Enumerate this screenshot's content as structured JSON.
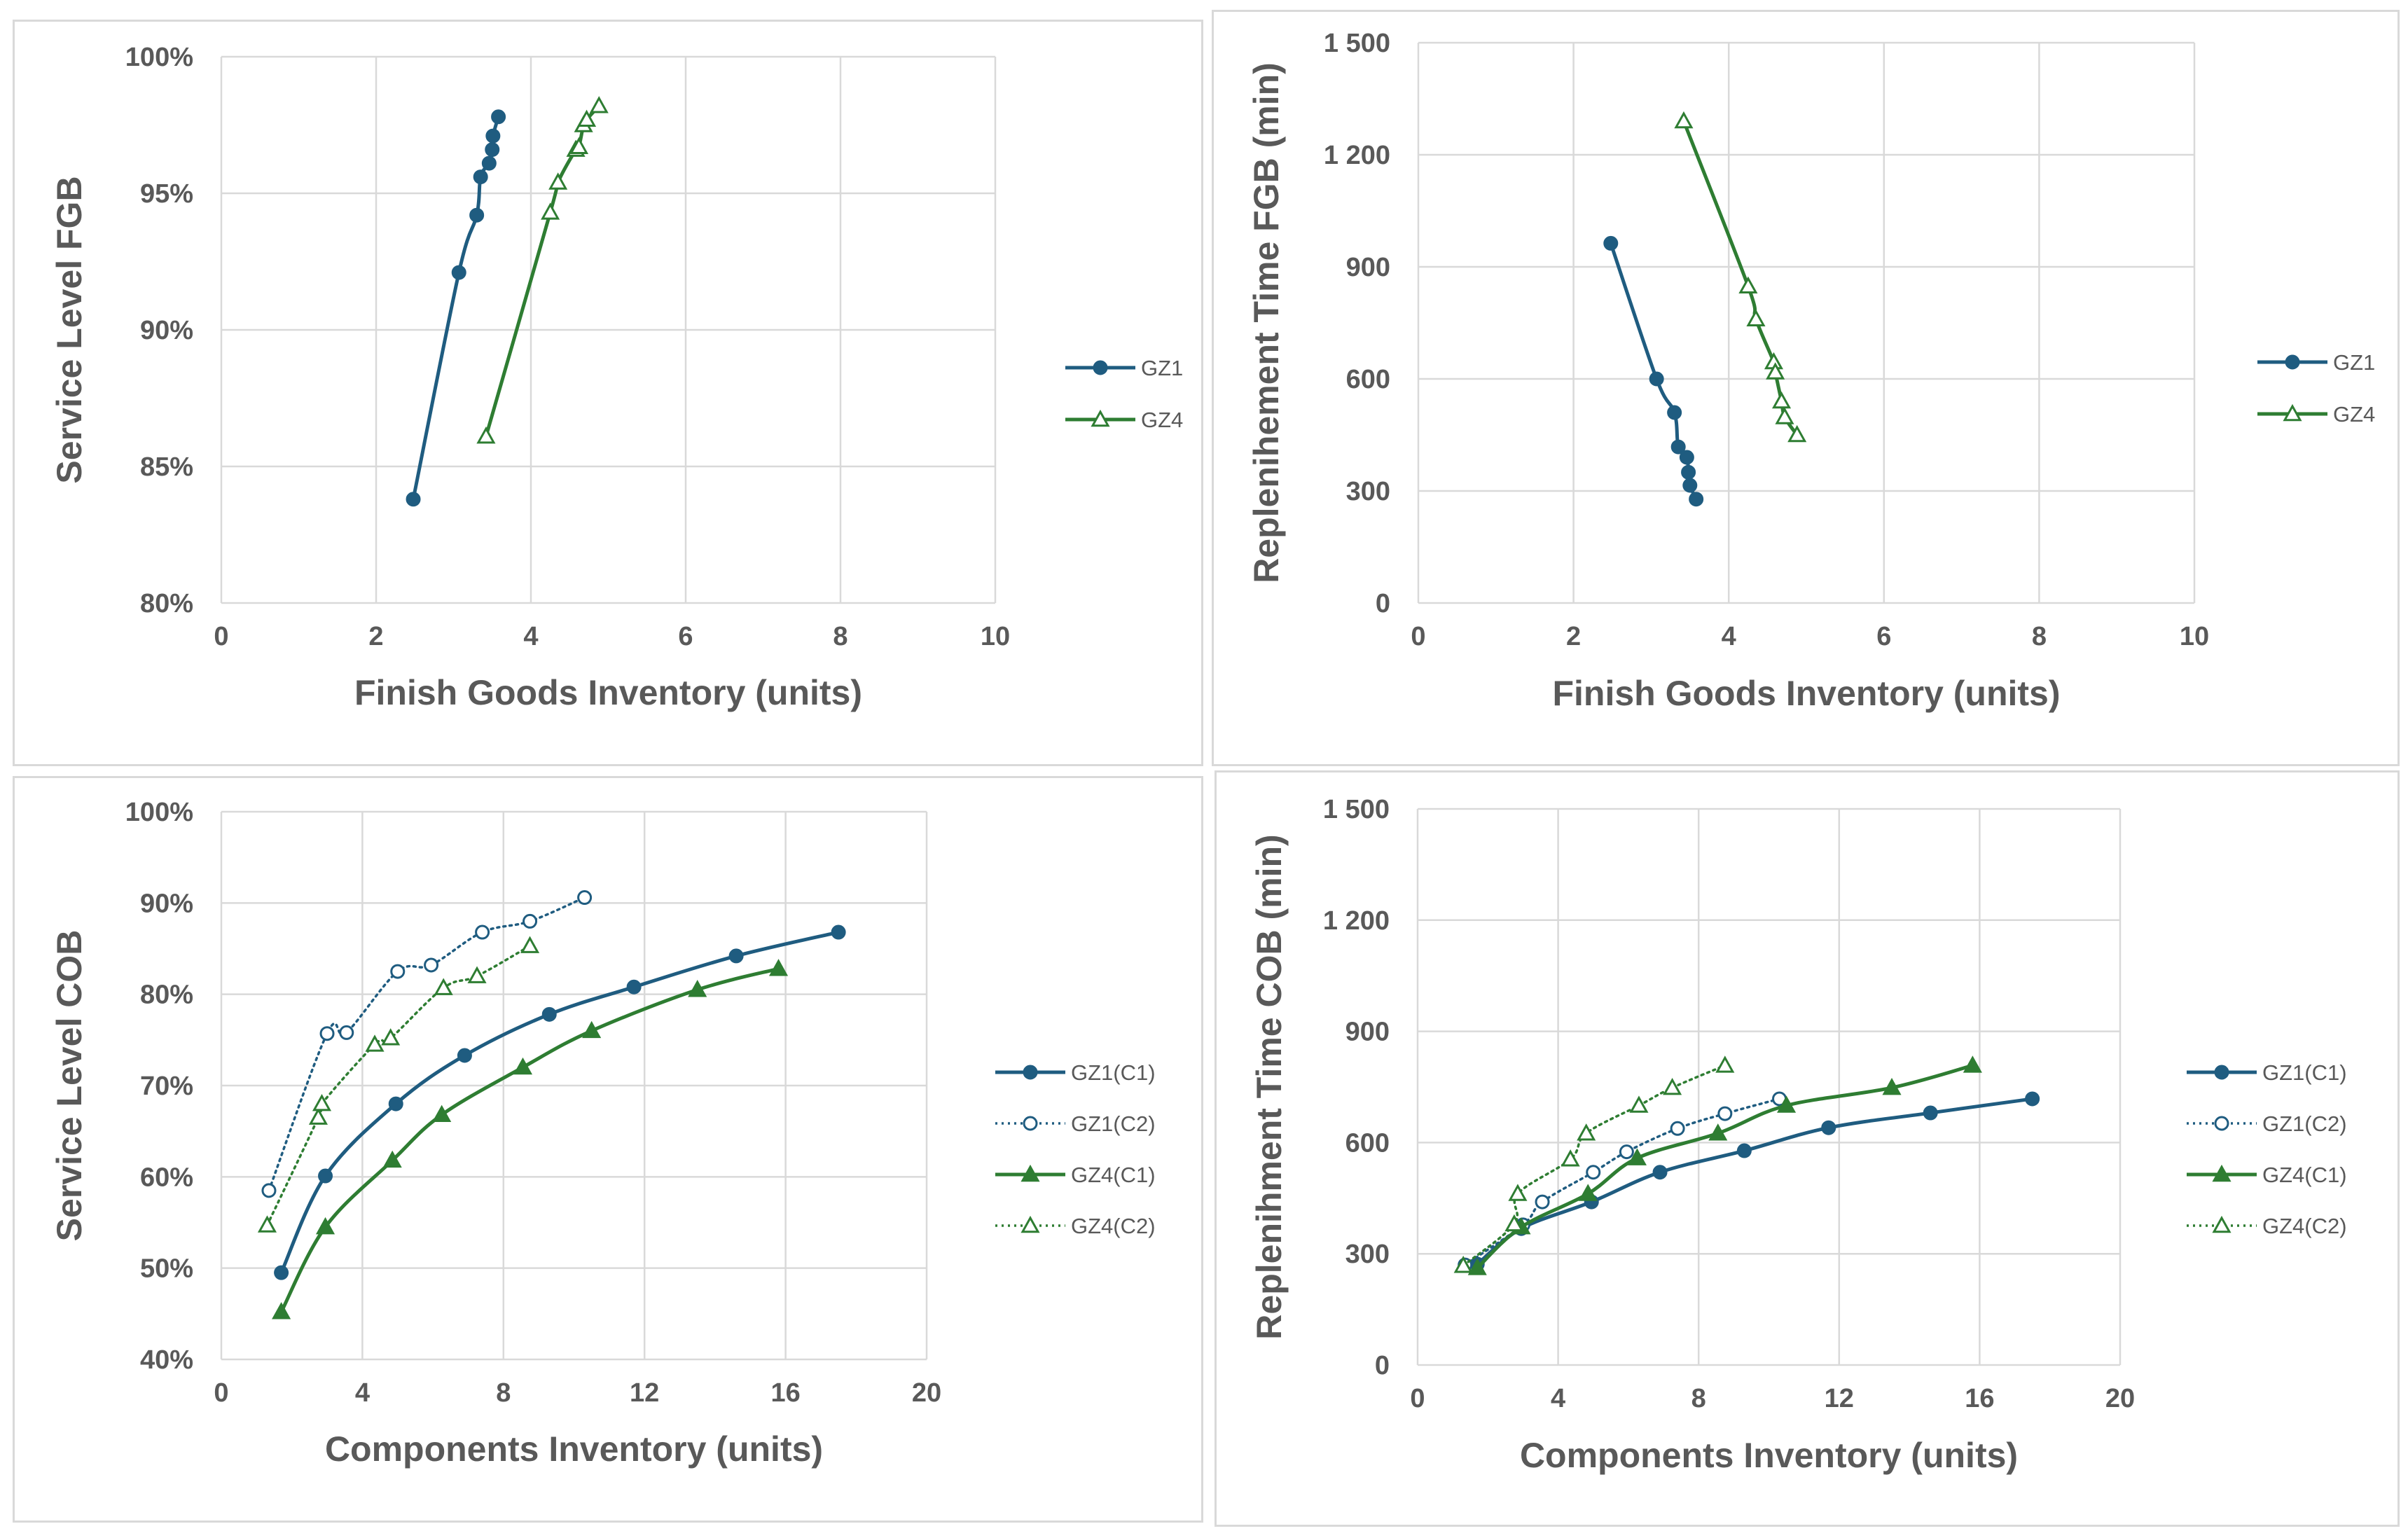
{
  "chart_data": [
    {
      "type": "line",
      "xlabel": "Finish Goods Inventory  (units)",
      "ylabel": "Service Level FGB",
      "xlim": [
        0,
        10
      ],
      "ylim": [
        0.8,
        1.0
      ],
      "xticks": [
        0,
        2,
        4,
        6,
        8,
        10
      ],
      "yticks": [
        0.8,
        0.85,
        0.9,
        0.95,
        1.0
      ],
      "ytick_labels": [
        "80%",
        "85%",
        "90%",
        "95%",
        "100%"
      ],
      "grid": true,
      "legend": "right",
      "series": [
        {
          "name": "GZ1",
          "color": "#1f5c80",
          "marker": "circle",
          "dash": "solid",
          "x": [
            2.48,
            3.07,
            3.3,
            3.35,
            3.46,
            3.5,
            3.51,
            3.58
          ],
          "y": [
            0.838,
            0.921,
            0.942,
            0.956,
            0.961,
            0.966,
            0.971,
            0.978
          ]
        },
        {
          "name": "GZ4",
          "color": "#2e7d32",
          "marker": "triangle-open",
          "dash": "solid",
          "x": [
            3.42,
            4.25,
            4.35,
            4.58,
            4.62,
            4.68,
            4.72,
            4.88
          ],
          "y": [
            0.861,
            0.943,
            0.954,
            0.966,
            0.967,
            0.975,
            0.977,
            0.982
          ]
        }
      ]
    },
    {
      "type": "line",
      "xlabel": "Finish Goods Inventory  (units)",
      "ylabel": "Replenihement Time FGB (min)",
      "xlim": [
        0,
        10
      ],
      "ylim": [
        0,
        1500
      ],
      "xticks": [
        0,
        2,
        4,
        6,
        8,
        10
      ],
      "yticks": [
        0,
        300,
        600,
        900,
        1200,
        1500
      ],
      "ytick_labels": [
        "0",
        "300",
        "600",
        "900",
        "1 200",
        "1 500"
      ],
      "grid": true,
      "legend": "right",
      "series": [
        {
          "name": "GZ1",
          "color": "#1f5c80",
          "marker": "circle",
          "dash": "solid",
          "x": [
            2.48,
            3.07,
            3.3,
            3.35,
            3.46,
            3.48,
            3.5,
            3.58
          ],
          "y": [
            963,
            600,
            510,
            418,
            390,
            350,
            315,
            278
          ]
        },
        {
          "name": "GZ4",
          "color": "#2e7d32",
          "marker": "triangle-open",
          "dash": "solid",
          "x": [
            3.42,
            4.25,
            4.35,
            4.58,
            4.6,
            4.68,
            4.72,
            4.88
          ],
          "y": [
            1290,
            848,
            760,
            645,
            618,
            540,
            498,
            450
          ]
        }
      ]
    },
    {
      "type": "line",
      "xlabel": "Components Inventory  (units)",
      "ylabel": "Service Level COB",
      "xlim": [
        0,
        20
      ],
      "ylim": [
        0.4,
        1.0
      ],
      "xticks": [
        0,
        4,
        8,
        12,
        16,
        20
      ],
      "yticks": [
        0.4,
        0.5,
        0.6,
        0.7,
        0.8,
        0.9,
        1.0
      ],
      "ytick_labels": [
        "40%",
        "50%",
        "60%",
        "70%",
        "80%",
        "90%",
        "100%"
      ],
      "grid": true,
      "legend": "right",
      "series": [
        {
          "name": "GZ1(C1)",
          "color": "#1f5c80",
          "marker": "circle",
          "dash": "solid",
          "x": [
            1.7,
            2.95,
            4.95,
            6.9,
            9.3,
            11.7,
            14.6,
            17.5
          ],
          "y": [
            0.495,
            0.601,
            0.68,
            0.733,
            0.778,
            0.808,
            0.842,
            0.868
          ]
        },
        {
          "name": "GZ1(C2)",
          "color": "#1f5c80",
          "marker": "circle-open",
          "dash": "dotted",
          "x": [
            1.35,
            3.0,
            3.55,
            5.0,
            5.95,
            7.4,
            8.75,
            10.3
          ],
          "y": [
            0.585,
            0.757,
            0.758,
            0.825,
            0.832,
            0.868,
            0.88,
            0.906
          ]
        },
        {
          "name": "GZ4(C1)",
          "color": "#2e7d32",
          "marker": "triangle",
          "dash": "solid",
          "x": [
            1.7,
            2.95,
            4.85,
            6.25,
            8.55,
            10.5,
            13.5,
            15.8
          ],
          "y": [
            0.452,
            0.545,
            0.618,
            0.668,
            0.72,
            0.76,
            0.805,
            0.828
          ]
        },
        {
          "name": "GZ4(C2)",
          "color": "#2e7d32",
          "marker": "triangle-open",
          "dash": "dotted",
          "x": [
            1.3,
            2.75,
            2.85,
            4.35,
            4.8,
            6.3,
            7.25,
            8.75
          ],
          "y": [
            0.547,
            0.665,
            0.68,
            0.745,
            0.752,
            0.807,
            0.82,
            0.853
          ]
        }
      ]
    },
    {
      "type": "line",
      "xlabel": "Components Inventory  (units)",
      "ylabel": "Replenihment Time COB (min)",
      "xlim": [
        0,
        20
      ],
      "ylim": [
        0,
        1500
      ],
      "xticks": [
        0,
        4,
        8,
        12,
        16,
        20
      ],
      "yticks": [
        0,
        300,
        600,
        900,
        1200,
        1500
      ],
      "ytick_labels": [
        "0",
        "300",
        "600",
        "900",
        "1 200",
        "1 500"
      ],
      "grid": true,
      "legend": "right",
      "series": [
        {
          "name": "GZ1(C1)",
          "color": "#1f5c80",
          "marker": "circle",
          "dash": "solid",
          "x": [
            1.7,
            2.95,
            4.95,
            6.9,
            9.3,
            11.7,
            14.6,
            17.5
          ],
          "y": [
            272,
            368,
            440,
            520,
            578,
            640,
            680,
            718
          ]
        },
        {
          "name": "GZ1(C2)",
          "color": "#1f5c80",
          "marker": "circle-open",
          "dash": "dotted",
          "x": [
            1.35,
            3.0,
            3.55,
            5.0,
            5.95,
            7.4,
            8.75,
            10.3
          ],
          "y": [
            270,
            378,
            440,
            520,
            575,
            638,
            678,
            718
          ]
        },
        {
          "name": "GZ4(C1)",
          "color": "#2e7d32",
          "marker": "triangle",
          "dash": "solid",
          "x": [
            1.7,
            2.95,
            4.85,
            6.25,
            8.55,
            10.5,
            13.5,
            15.8
          ],
          "y": [
            262,
            372,
            462,
            558,
            625,
            700,
            748,
            808
          ]
        },
        {
          "name": "GZ4(C2)",
          "color": "#2e7d32",
          "marker": "triangle-open",
          "dash": "dotted",
          "x": [
            1.3,
            2.75,
            2.85,
            4.35,
            4.8,
            6.3,
            7.25,
            8.75
          ],
          "y": [
            268,
            380,
            462,
            555,
            625,
            700,
            748,
            808
          ]
        }
      ]
    }
  ]
}
